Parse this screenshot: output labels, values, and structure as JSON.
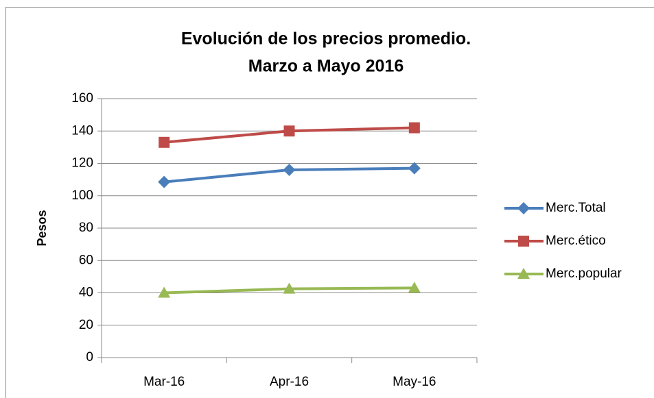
{
  "chart_data": {
    "type": "line",
    "title": [
      "Evolución de los precios promedio.",
      "Marzo a Mayo 2016"
    ],
    "y_label": "Pesos",
    "categories": [
      "Mar-16",
      "Apr-16",
      "May-16"
    ],
    "series": [
      {
        "name": "Merc.Total",
        "color": "#4a7ebb",
        "marker": "diamond",
        "values": [
          108.5,
          116,
          117
        ]
      },
      {
        "name": "Merc.ético",
        "color": "#be4b48",
        "marker": "square",
        "values": [
          133,
          140,
          142
        ]
      },
      {
        "name": "Merc.popular",
        "color": "#98b954",
        "marker": "triangle",
        "values": [
          40,
          42.5,
          43
        ]
      }
    ],
    "ylim": [
      0,
      160
    ],
    "yticks": [
      0,
      20,
      40,
      60,
      80,
      100,
      120,
      140,
      160
    ],
    "grid": true,
    "legend": "right"
  }
}
